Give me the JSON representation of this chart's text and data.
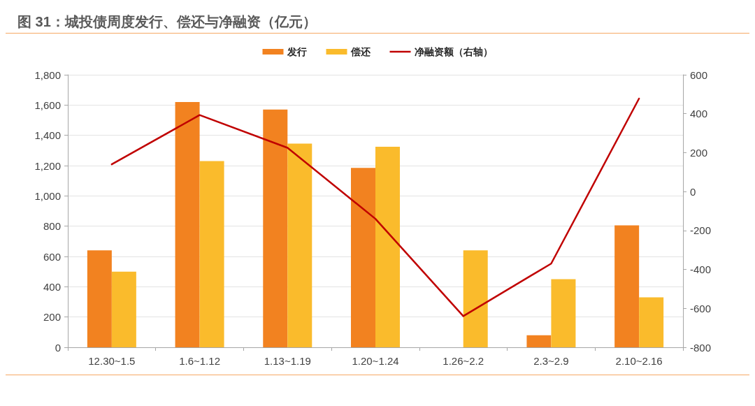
{
  "chart_data": {
    "type": "bar",
    "title": "图 31：城投债周度发行、偿还与净融资（亿元）",
    "categories": [
      "12.30~1.5",
      "1.6~1.12",
      "1.13~1.19",
      "1.20~1.24",
      "1.26~2.2",
      "2.3~2.9",
      "2.10~2.16"
    ],
    "series": [
      {
        "name": "发行",
        "color": "#f28220",
        "values": [
          640,
          1620,
          1570,
          1185,
          0,
          80,
          805
        ]
      },
      {
        "name": "偿还",
        "color": "#fabb2c",
        "values": [
          500,
          1230,
          1345,
          1325,
          640,
          450,
          330
        ]
      },
      {
        "name": "净融资额（右轴）",
        "type": "line",
        "axis": "y2",
        "color": "#c00000",
        "values": [
          140,
          393,
          225,
          -140,
          -640,
          -370,
          478
        ]
      }
    ],
    "ylim": [
      0,
      1800
    ],
    "yticks": [
      0,
      200,
      400,
      600,
      800,
      {
        "value": 1000,
        "label": "1,000"
      },
      {
        "value": 1200,
        "label": "1,200"
      },
      {
        "value": 1400,
        "label": "1,400"
      },
      {
        "value": 1600,
        "label": "1,600"
      },
      {
        "value": 1800,
        "label": "1,800"
      }
    ],
    "y2lim": [
      -800,
      600
    ],
    "y2ticks": [
      -800,
      -600,
      -400,
      -200,
      0,
      200,
      400,
      600
    ],
    "grid": "y",
    "legend": "top",
    "marker": "none"
  }
}
